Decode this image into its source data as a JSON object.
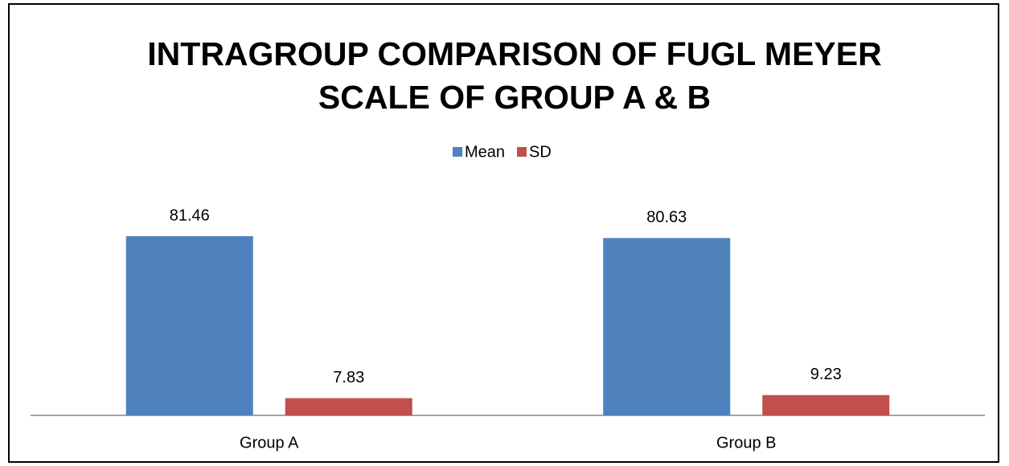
{
  "chart_data": {
    "type": "bar",
    "title": "INTRAGROUP COMPARISON OF FUGL MEYER SCALE OF GROUP A & B",
    "categories": [
      "Group A",
      "Group B"
    ],
    "series": [
      {
        "name": "Mean",
        "color": "#4f81bd",
        "values": [
          81.46,
          80.63
        ]
      },
      {
        "name": "SD",
        "color": "#c0504d",
        "values": [
          7.83,
          9.23
        ]
      }
    ],
    "legend": "top"
  }
}
